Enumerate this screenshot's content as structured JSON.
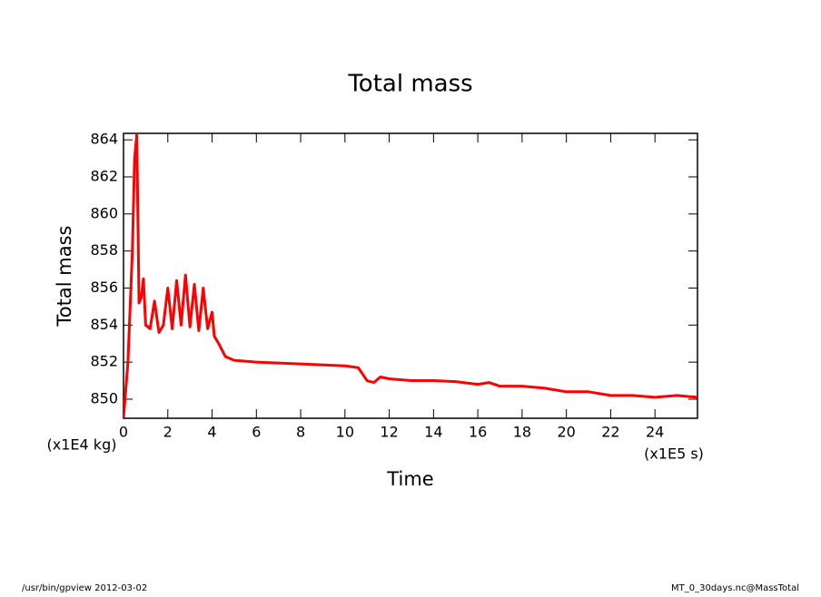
{
  "chart_data": {
    "type": "line",
    "title": "Total mass",
    "xlabel": "Time",
    "ylabel": "Total mass",
    "xunit": "(x1E5 s)",
    "yunit": "(x1E4 kg)",
    "footer_left": "/usr/bin/gpview  2012-03-02",
    "footer_right": "MT_0_30days.nc@MassTotal",
    "xlim": [
      0,
      25.92
    ],
    "ylim": [
      848.97,
      864.35
    ],
    "xticks": [
      0,
      2,
      4,
      6,
      8,
      10,
      12,
      14,
      16,
      18,
      20,
      22,
      24
    ],
    "yticks": [
      850,
      852,
      854,
      856,
      858,
      860,
      862,
      864
    ],
    "series": [
      {
        "name": "MassTotal",
        "color": "#ff0000",
        "x": [
          0,
          0.2,
          0.4,
          0.5,
          0.6,
          0.7,
          0.8,
          0.9,
          1.0,
          1.2,
          1.4,
          1.6,
          1.8,
          2.0,
          2.2,
          2.4,
          2.6,
          2.8,
          3.0,
          3.2,
          3.4,
          3.6,
          3.8,
          4.0,
          4.1,
          4.3,
          4.6,
          5.0,
          6,
          8,
          10,
          10.6,
          11.0,
          11.3,
          11.6,
          12,
          13,
          14,
          15,
          16,
          16.5,
          17,
          18,
          19,
          20,
          21,
          22,
          23,
          24,
          25,
          25.92
        ],
        "values": [
          849.0,
          852,
          858,
          863,
          864.3,
          855.2,
          855.5,
          856.5,
          854.0,
          853.8,
          855.3,
          853.6,
          854.0,
          856.0,
          853.8,
          856.4,
          854.0,
          856.7,
          853.9,
          856.2,
          853.7,
          856.0,
          853.8,
          854.7,
          853.4,
          853.0,
          852.3,
          852.1,
          852.0,
          851.9,
          851.8,
          851.7,
          851.0,
          850.9,
          851.2,
          851.1,
          851.0,
          851.0,
          850.95,
          850.8,
          850.9,
          850.7,
          850.7,
          850.6,
          850.4,
          850.4,
          850.2,
          850.2,
          850.1,
          850.2,
          850.1
        ]
      }
    ]
  }
}
